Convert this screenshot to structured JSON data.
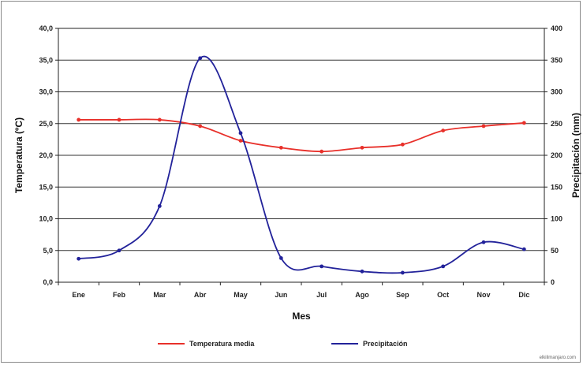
{
  "chart_data": {
    "type": "line",
    "categories": [
      "Ene",
      "Feb",
      "Mar",
      "Abr",
      "May",
      "Jun",
      "Jul",
      "Ago",
      "Sep",
      "Oct",
      "Nov",
      "Dic"
    ],
    "xlabel": "Mes",
    "ylabel": "Temperatura (ºC)",
    "y2label": "Precipitación (mm)",
    "ylim": [
      0,
      40
    ],
    "y2lim": [
      0,
      400
    ],
    "yticks": [
      "0,0",
      "5,0",
      "10,0",
      "15,0",
      "20,0",
      "25,0",
      "30,0",
      "35,0",
      "40,0"
    ],
    "y2ticks": [
      "0",
      "50",
      "100",
      "150",
      "200",
      "250",
      "300",
      "350",
      "400"
    ],
    "grid": "horizontal",
    "legend_position": "bottom",
    "series": [
      {
        "name": "Temperatura media",
        "axis": "left",
        "color": "#e8302a",
        "values": [
          25.6,
          25.6,
          25.6,
          24.6,
          22.3,
          21.2,
          20.6,
          21.2,
          21.7,
          23.9,
          24.6,
          25.1
        ]
      },
      {
        "name": "Precipitación",
        "axis": "right",
        "color": "#22229a",
        "values": [
          37,
          50,
          120,
          353,
          235,
          38,
          25,
          17,
          15,
          25,
          63,
          52
        ]
      }
    ]
  },
  "credit": "elkilimanjaro.com"
}
